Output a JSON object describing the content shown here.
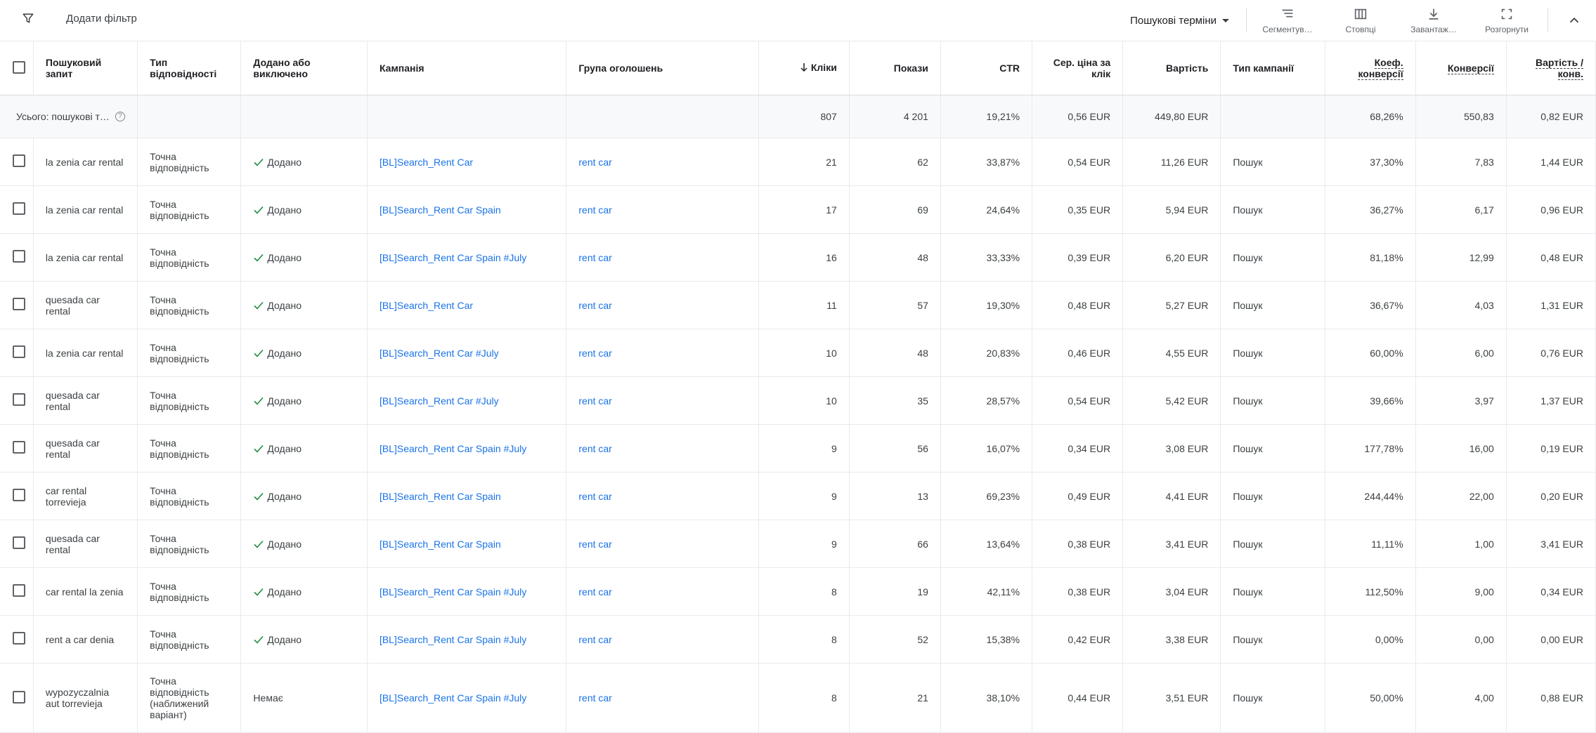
{
  "toolbar": {
    "add_filter_label": "Додати фільтр",
    "view_select_label": "Пошукові терміни",
    "tools": [
      {
        "label": "Сегментув…",
        "icon": "segment-icon"
      },
      {
        "label": "Стовпці",
        "icon": "columns-icon"
      },
      {
        "label": "Завантаж…",
        "icon": "download-icon"
      },
      {
        "label": "Розгорнути",
        "icon": "expand-icon"
      }
    ]
  },
  "table": {
    "columns": [
      "Пошуковий запит",
      "Тип відповідності",
      "Додано або виключено",
      "Кампанія",
      "Група оголошень",
      "Кліки",
      "Покази",
      "CTR",
      "Сер. ціна за клік",
      "Вартість",
      "Тип кампанії",
      "Коеф. конверсії",
      "Конверсії",
      "Вартість / конв."
    ],
    "total": {
      "label": "Усього: пошукові т…",
      "clicks": "807",
      "impressions": "4 201",
      "ctr": "19,21%",
      "avg_cpc": "0,56 EUR",
      "cost": "449,80 EUR",
      "conv_rate": "68,26%",
      "conversions": "550,83",
      "cost_per_conv": "0,82 EUR"
    },
    "rows": [
      {
        "term": "la zenia car rental",
        "match": "Точна відповідність",
        "status": "Додано",
        "campaign": "[BL]Search_Rent Car",
        "adgroup": "rent car",
        "clicks": "21",
        "impressions": "62",
        "ctr": "33,87%",
        "cpc": "0,54 EUR",
        "cost": "11,26 EUR",
        "type": "Пошук",
        "conv_rate": "37,30%",
        "conversions": "7,83",
        "cost_conv": "1,44 EUR"
      },
      {
        "term": "la zenia car rental",
        "match": "Точна відповідність",
        "status": "Додано",
        "campaign": "[BL]Search_Rent Car Spain",
        "adgroup": "rent car",
        "clicks": "17",
        "impressions": "69",
        "ctr": "24,64%",
        "cpc": "0,35 EUR",
        "cost": "5,94 EUR",
        "type": "Пошук",
        "conv_rate": "36,27%",
        "conversions": "6,17",
        "cost_conv": "0,96 EUR"
      },
      {
        "term": "la zenia car rental",
        "match": "Точна відповідність",
        "status": "Додано",
        "campaign": "[BL]Search_Rent Car Spain #July",
        "adgroup": "rent car",
        "clicks": "16",
        "impressions": "48",
        "ctr": "33,33%",
        "cpc": "0,39 EUR",
        "cost": "6,20 EUR",
        "type": "Пошук",
        "conv_rate": "81,18%",
        "conversions": "12,99",
        "cost_conv": "0,48 EUR"
      },
      {
        "term": "quesada car rental",
        "match": "Точна відповідність",
        "status": "Додано",
        "campaign": "[BL]Search_Rent Car",
        "adgroup": "rent car",
        "clicks": "11",
        "impressions": "57",
        "ctr": "19,30%",
        "cpc": "0,48 EUR",
        "cost": "5,27 EUR",
        "type": "Пошук",
        "conv_rate": "36,67%",
        "conversions": "4,03",
        "cost_conv": "1,31 EUR"
      },
      {
        "term": "la zenia car rental",
        "match": "Точна відповідність",
        "status": "Додано",
        "campaign": "[BL]Search_Rent Car #July",
        "adgroup": "rent car",
        "clicks": "10",
        "impressions": "48",
        "ctr": "20,83%",
        "cpc": "0,46 EUR",
        "cost": "4,55 EUR",
        "type": "Пошук",
        "conv_rate": "60,00%",
        "conversions": "6,00",
        "cost_conv": "0,76 EUR"
      },
      {
        "term": "quesada car rental",
        "match": "Точна відповідність",
        "status": "Додано",
        "campaign": "[BL]Search_Rent Car #July",
        "adgroup": "rent car",
        "clicks": "10",
        "impressions": "35",
        "ctr": "28,57%",
        "cpc": "0,54 EUR",
        "cost": "5,42 EUR",
        "type": "Пошук",
        "conv_rate": "39,66%",
        "conversions": "3,97",
        "cost_conv": "1,37 EUR"
      },
      {
        "term": "quesada car rental",
        "match": "Точна відповідність",
        "status": "Додано",
        "campaign": "[BL]Search_Rent Car Spain #July",
        "adgroup": "rent car",
        "clicks": "9",
        "impressions": "56",
        "ctr": "16,07%",
        "cpc": "0,34 EUR",
        "cost": "3,08 EUR",
        "type": "Пошук",
        "conv_rate": "177,78%",
        "conversions": "16,00",
        "cost_conv": "0,19 EUR"
      },
      {
        "term": "car rental torrevieja",
        "match": "Точна відповідність",
        "status": "Додано",
        "campaign": "[BL]Search_Rent Car Spain",
        "adgroup": "rent car",
        "clicks": "9",
        "impressions": "13",
        "ctr": "69,23%",
        "cpc": "0,49 EUR",
        "cost": "4,41 EUR",
        "type": "Пошук",
        "conv_rate": "244,44%",
        "conversions": "22,00",
        "cost_conv": "0,20 EUR"
      },
      {
        "term": "quesada car rental",
        "match": "Точна відповідність",
        "status": "Додано",
        "campaign": "[BL]Search_Rent Car Spain",
        "adgroup": "rent car",
        "clicks": "9",
        "impressions": "66",
        "ctr": "13,64%",
        "cpc": "0,38 EUR",
        "cost": "3,41 EUR",
        "type": "Пошук",
        "conv_rate": "11,11%",
        "conversions": "1,00",
        "cost_conv": "3,41 EUR"
      },
      {
        "term": "car rental la zenia",
        "match": "Точна відповідність",
        "status": "Додано",
        "campaign": "[BL]Search_Rent Car Spain #July",
        "adgroup": "rent car",
        "clicks": "8",
        "impressions": "19",
        "ctr": "42,11%",
        "cpc": "0,38 EUR",
        "cost": "3,04 EUR",
        "type": "Пошук",
        "conv_rate": "112,50%",
        "conversions": "9,00",
        "cost_conv": "0,34 EUR"
      },
      {
        "term": "rent a car denia",
        "match": "Точна відповідність",
        "status": "Додано",
        "campaign": "[BL]Search_Rent Car Spain #July",
        "adgroup": "rent car",
        "clicks": "8",
        "impressions": "52",
        "ctr": "15,38%",
        "cpc": "0,42 EUR",
        "cost": "3,38 EUR",
        "type": "Пошук",
        "conv_rate": "0,00%",
        "conversions": "0,00",
        "cost_conv": "0,00 EUR"
      },
      {
        "term": "wypozyczalnia aut torrevieja",
        "match": "Точна відповідність (наближений варіант)",
        "status": "Немає",
        "campaign": "[BL]Search_Rent Car Spain #July",
        "adgroup": "rent car",
        "clicks": "8",
        "impressions": "21",
        "ctr": "38,10%",
        "cpc": "0,44 EUR",
        "cost": "3,51 EUR",
        "type": "Пошук",
        "conv_rate": "50,00%",
        "conversions": "4,00",
        "cost_conv": "0,88 EUR"
      }
    ]
  }
}
